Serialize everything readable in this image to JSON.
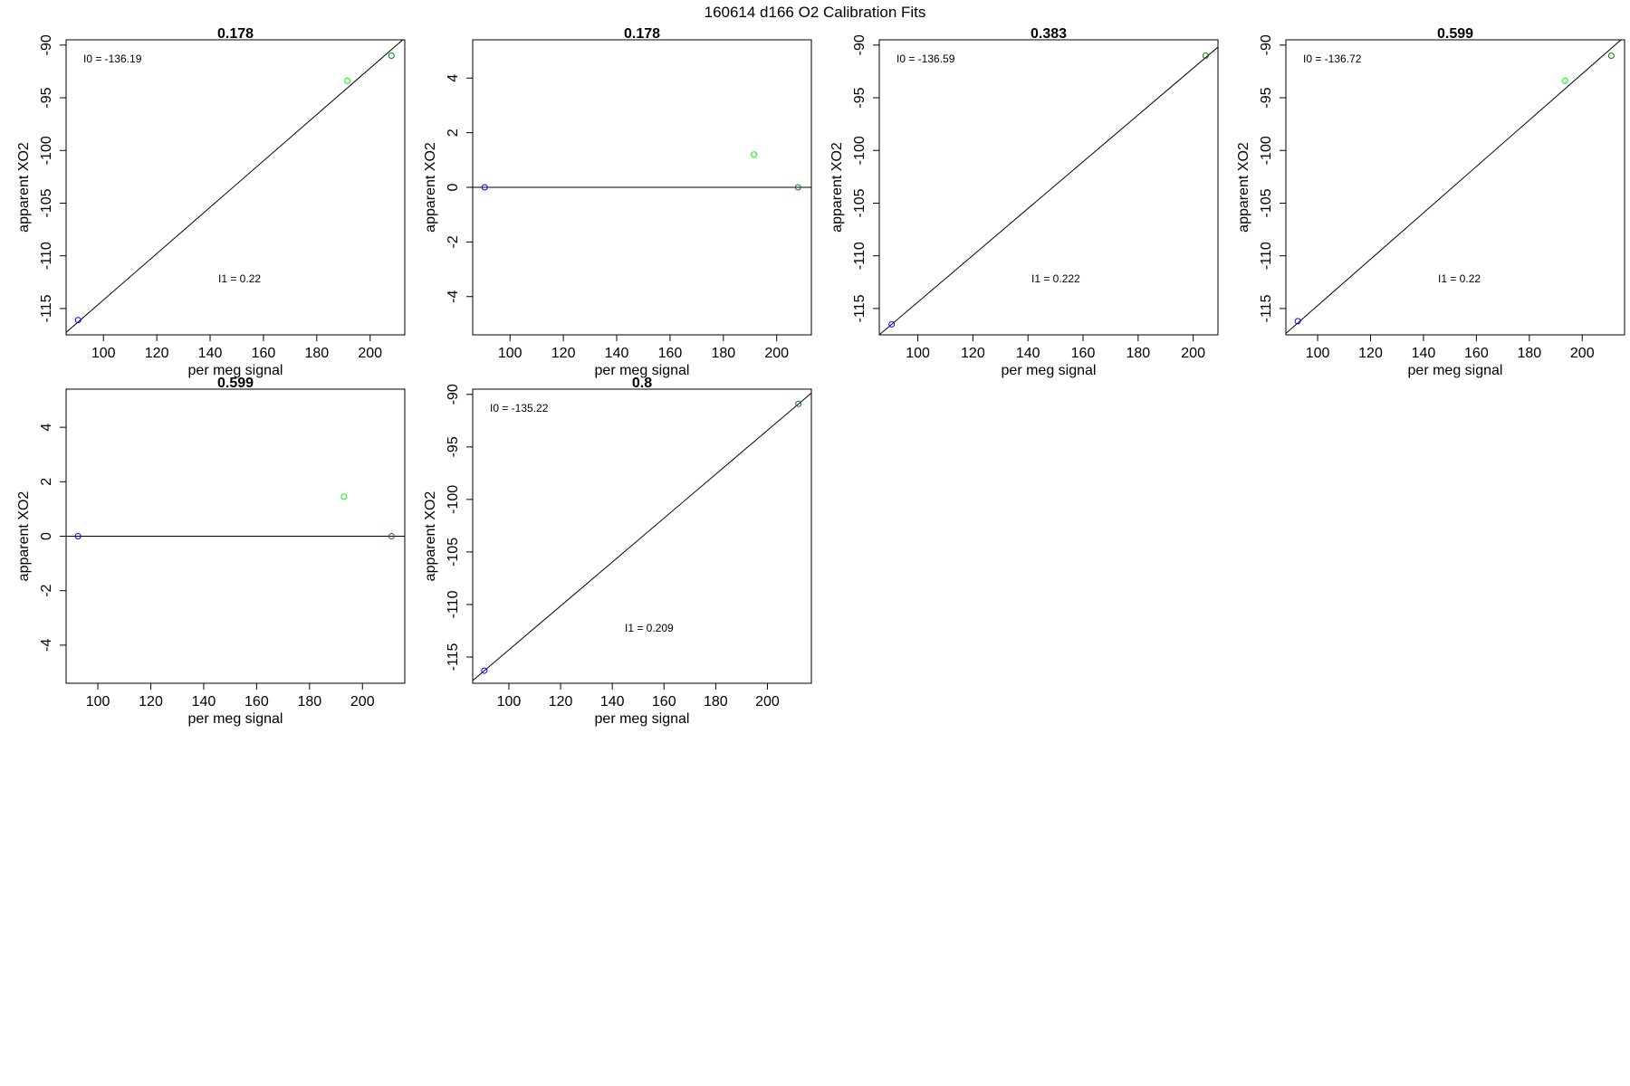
{
  "figure": {
    "title": "160614   d166   O2 Calibration Fits"
  },
  "chart_data": [
    {
      "type": "scatter",
      "title": "0.178",
      "xlabel": "per meg signal",
      "ylabel": "apparent XO2",
      "xlim": [
        86,
        213
      ],
      "ylim": [
        -117.5,
        -89.5
      ],
      "xticks": [
        100,
        120,
        140,
        160,
        180,
        200
      ],
      "yticks": [
        -115,
        -110,
        -105,
        -100,
        -95,
        -90
      ],
      "yticks_rotated": true,
      "grid": false,
      "points": [
        {
          "x": 90.5,
          "y": -116.1,
          "color": "#0000ff"
        },
        {
          "x": 191.5,
          "y": -93.4,
          "color": "#00ff00"
        },
        {
          "x": 208,
          "y": -91.0,
          "color": "#008000"
        }
      ],
      "fit_line": {
        "intercept": -136.19,
        "slope": 0.22
      },
      "annotations": [
        {
          "text": "I0 =  -136.19",
          "anchor": "top-left"
        },
        {
          "text": "I1 =  0.22",
          "anchor": "lower-middle"
        }
      ]
    },
    {
      "type": "scatter",
      "title": "0.178",
      "xlabel": "per meg signal",
      "ylabel": "apparent XO2",
      "xlim": [
        86,
        213
      ],
      "ylim": [
        -5.4,
        5.4
      ],
      "xticks": [
        100,
        120,
        140,
        160,
        180,
        200
      ],
      "yticks": [
        -4,
        -2,
        0,
        2,
        4
      ],
      "yticks_rotated": true,
      "grid": false,
      "points": [
        {
          "x": 90.5,
          "y": 0,
          "color": "#0000ff"
        },
        {
          "x": 191.5,
          "y": 1.2,
          "color": "#00ff00"
        },
        {
          "x": 208,
          "y": 0,
          "color": "#008000"
        }
      ],
      "hline": 0,
      "annotations": []
    },
    {
      "type": "scatter",
      "title": "0.383",
      "xlabel": "per meg signal",
      "ylabel": "apparent XO2",
      "xlim": [
        86,
        209
      ],
      "ylim": [
        -117.5,
        -89.5
      ],
      "xticks": [
        100,
        120,
        140,
        160,
        180,
        200
      ],
      "yticks": [
        -115,
        -110,
        -105,
        -100,
        -95,
        -90
      ],
      "yticks_rotated": true,
      "grid": false,
      "points": [
        {
          "x": 90.5,
          "y": -116.5,
          "color": "#0000ff"
        },
        {
          "x": 204.5,
          "y": -91.0,
          "color": "#008000"
        }
      ],
      "fit_line": {
        "intercept": -136.59,
        "slope": 0.222
      },
      "annotations": [
        {
          "text": "I0 =  -136.59",
          "anchor": "top-left"
        },
        {
          "text": "I1 =  0.222",
          "anchor": "lower-middle"
        }
      ]
    },
    {
      "type": "scatter",
      "title": "0.599",
      "xlabel": "per meg signal",
      "ylabel": "apparent XO2",
      "xlim": [
        88,
        216
      ],
      "ylim": [
        -117.5,
        -89.5
      ],
      "xticks": [
        100,
        120,
        140,
        160,
        180,
        200
      ],
      "yticks": [
        -115,
        -110,
        -105,
        -100,
        -95,
        -90
      ],
      "yticks_rotated": true,
      "grid": false,
      "points": [
        {
          "x": 92.5,
          "y": -116.2,
          "color": "#0000ff"
        },
        {
          "x": 193.5,
          "y": -93.4,
          "color": "#00ff00"
        },
        {
          "x": 211,
          "y": -91.0,
          "color": "#008000"
        }
      ],
      "fit_line": {
        "intercept": -136.72,
        "slope": 0.22
      },
      "annotations": [
        {
          "text": "I0 =  -136.72",
          "anchor": "top-left"
        },
        {
          "text": "I1 =  0.22",
          "anchor": "lower-middle"
        }
      ]
    },
    {
      "type": "scatter",
      "title": "0.599",
      "xlabel": "per meg signal",
      "ylabel": "apparent XO2",
      "xlim": [
        88,
        216
      ],
      "ylim": [
        -5.4,
        5.4
      ],
      "xticks": [
        100,
        120,
        140,
        160,
        180,
        200
      ],
      "yticks": [
        -4,
        -2,
        0,
        2,
        4
      ],
      "yticks_rotated": true,
      "grid": false,
      "points": [
        {
          "x": 92.5,
          "y": 0,
          "color": "#0000ff"
        },
        {
          "x": 193,
          "y": 1.45,
          "color": "#00ff00"
        },
        {
          "x": 211,
          "y": 0,
          "color": "#008000"
        }
      ],
      "hline": 0,
      "annotations": []
    },
    {
      "type": "scatter",
      "title": "0.8",
      "xlabel": "per meg signal",
      "ylabel": "apparent XO2",
      "xlim": [
        86,
        217
      ],
      "ylim": [
        -117.5,
        -89.5
      ],
      "xticks": [
        100,
        120,
        140,
        160,
        180,
        200
      ],
      "yticks": [
        -115,
        -110,
        -105,
        -100,
        -95,
        -90
      ],
      "yticks_rotated": true,
      "grid": false,
      "points": [
        {
          "x": 90.5,
          "y": -116.3,
          "color": "#0000ff"
        },
        {
          "x": 212,
          "y": -90.9,
          "color": "#008000"
        }
      ],
      "fit_line": {
        "intercept": -135.22,
        "slope": 0.209
      },
      "annotations": [
        {
          "text": "I0 =  -135.22",
          "anchor": "top-left"
        },
        {
          "text": "I1 =  0.209",
          "anchor": "lower-middle"
        }
      ]
    }
  ]
}
